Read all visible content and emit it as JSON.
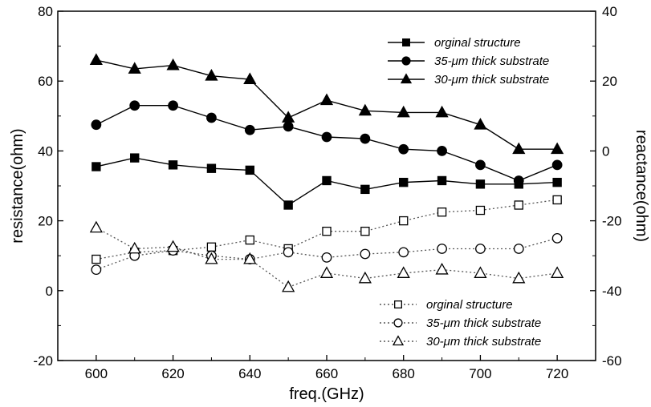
{
  "chart_data": {
    "type": "line",
    "x": [
      600,
      610,
      620,
      630,
      640,
      650,
      660,
      670,
      680,
      690,
      700,
      710,
      720
    ],
    "xlabel": "freq.(GHz)",
    "ylabel": "resistance(ohm)",
    "y2label": "reactance(ohm)",
    "xlim": [
      590,
      730
    ],
    "ylim": [
      -20,
      80
    ],
    "y2lim": [
      -60,
      40
    ],
    "xticks": [
      600,
      620,
      640,
      660,
      680,
      700,
      720
    ],
    "yticks": [
      -20,
      0,
      20,
      40,
      60,
      80
    ],
    "y2ticks": [
      -60,
      -40,
      -20,
      0,
      20,
      40
    ],
    "grid": false,
    "series": [
      {
        "name": "orginal structure",
        "axis": "left",
        "marker": "square",
        "filled": true,
        "line": "solid",
        "values": [
          35.5,
          38,
          36,
          35,
          34.5,
          24.5,
          31.5,
          29,
          31,
          31.5,
          30.5,
          30.5,
          31
        ]
      },
      {
        "name": "35-μm thick substrate",
        "axis": "left",
        "marker": "circle",
        "filled": true,
        "line": "solid",
        "values": [
          47.5,
          53,
          53,
          49.5,
          46,
          47,
          44,
          43.5,
          40.5,
          40,
          36,
          31.5,
          36
        ]
      },
      {
        "name": "30-μm thick substrate",
        "axis": "left",
        "marker": "triangle",
        "filled": true,
        "line": "solid",
        "values": [
          66,
          63.5,
          64.5,
          61.5,
          60.5,
          49.5,
          54.5,
          51.5,
          51,
          51,
          47.5,
          40.5,
          40.5
        ]
      },
      {
        "name": "orginal structure",
        "axis": "right",
        "marker": "square",
        "filled": false,
        "line": "dotted",
        "values": [
          -31,
          -29,
          -28.5,
          -27.5,
          -25.5,
          -28,
          -23,
          -23,
          -20,
          -17.5,
          -17,
          -15.5,
          -14
        ]
      },
      {
        "name": "35-μm thick substrate",
        "axis": "right",
        "marker": "circle",
        "filled": false,
        "line": "dotted",
        "values": [
          -34,
          -30,
          -28.5,
          -30,
          -31,
          -29,
          -30.5,
          -29.5,
          -29,
          -28,
          -28,
          -28,
          -25
        ]
      },
      {
        "name": "30-μm thick substrate",
        "axis": "right",
        "marker": "triangle",
        "filled": false,
        "line": "dotted",
        "values": [
          -22,
          -28,
          -27.5,
          -31,
          -31,
          -39,
          -35,
          -36.5,
          -35,
          -34,
          -35,
          -36.5,
          -35
        ]
      }
    ],
    "legends": [
      {
        "placement": "top-right",
        "series": [
          0,
          1,
          2
        ]
      },
      {
        "placement": "bottom-right",
        "series": [
          3,
          4,
          5
        ]
      }
    ]
  }
}
